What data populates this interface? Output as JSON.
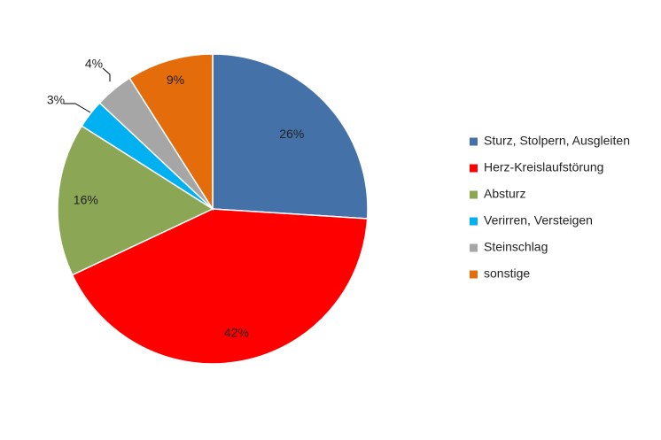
{
  "chart_data": {
    "type": "pie",
    "title": "",
    "legend_position": "right",
    "series": [
      {
        "name": "Sturz, Stolpern, Ausgleiten",
        "value": 26,
        "label": "26%",
        "color": "#4472a8"
      },
      {
        "name": "Herz-Kreislaufstörung",
        "value": 42,
        "label": "42%",
        "color": "#ff0000"
      },
      {
        "name": "Absturz",
        "value": 16,
        "label": "16%",
        "color": "#8ba654"
      },
      {
        "name": "Verirren, Versteigen",
        "value": 3,
        "label": "3%",
        "color": "#00b0f0"
      },
      {
        "name": "Steinschlag",
        "value": 4,
        "label": "4%",
        "color": "#a6a6a6"
      },
      {
        "name": "sonstige",
        "value": 9,
        "label": "9%",
        "color": "#e46c0a"
      }
    ]
  }
}
